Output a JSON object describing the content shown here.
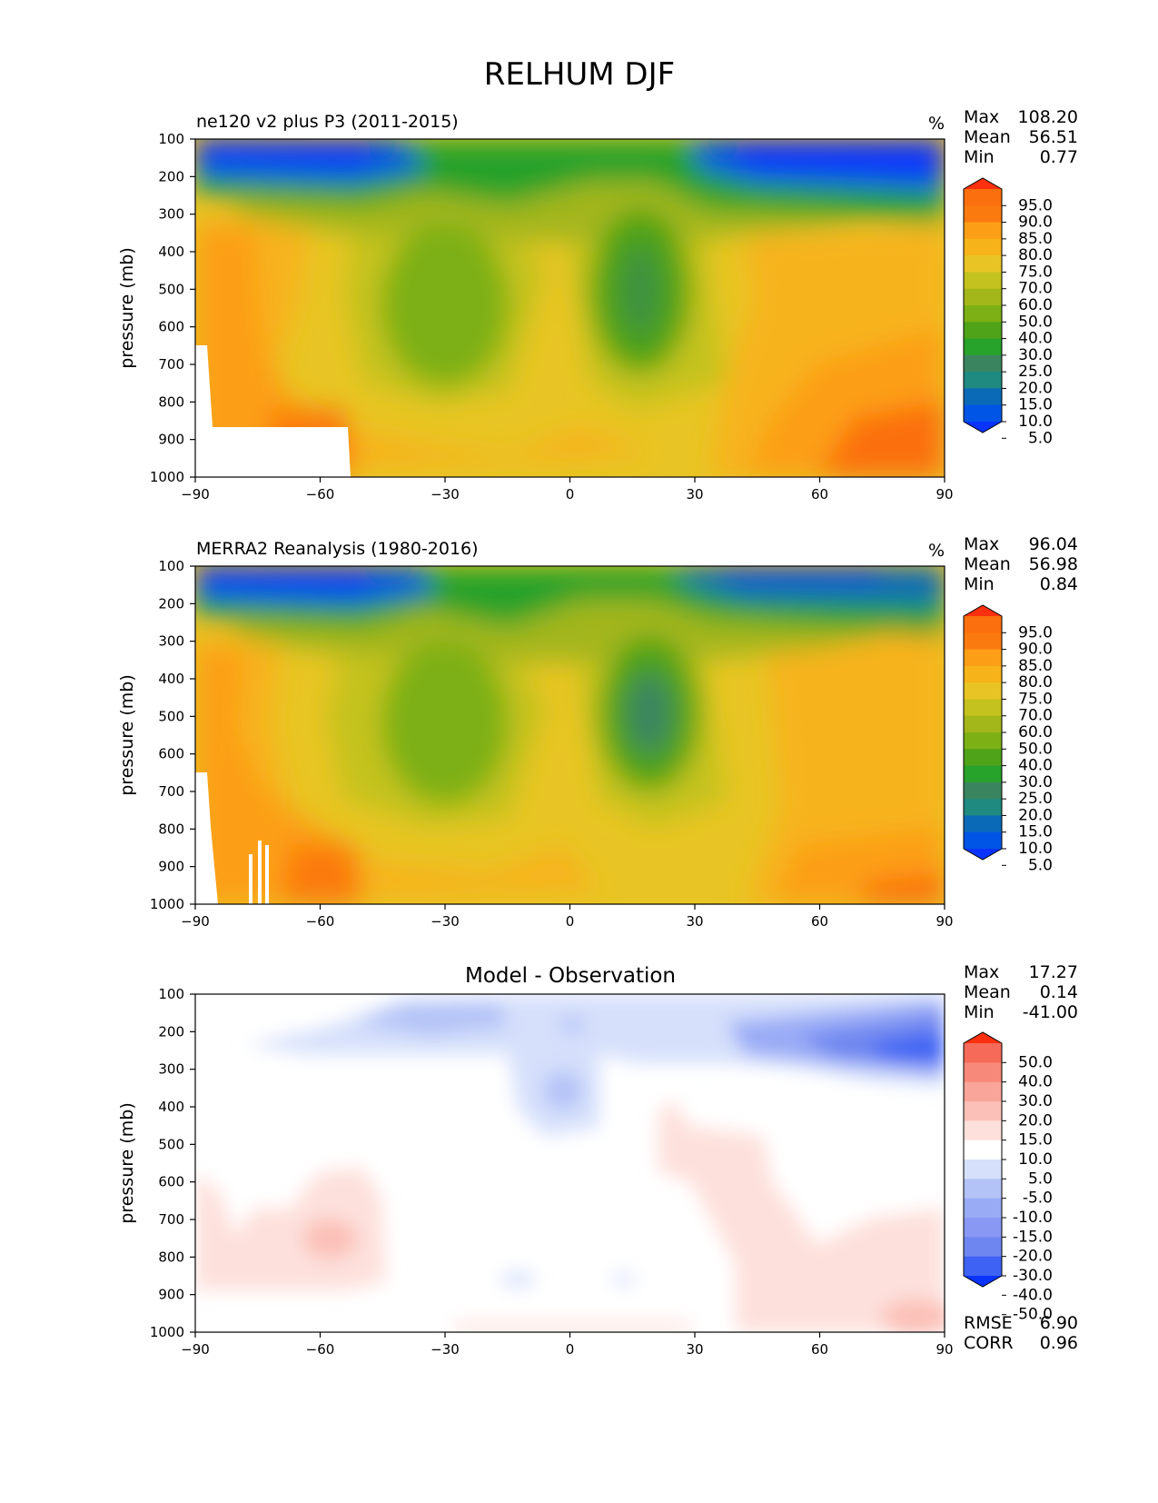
{
  "suptitle": "RELHUM DJF",
  "colors": {
    "relhum_levels": [
      "#0a33ff",
      "#0055e6",
      "#0a6ab8",
      "#1f8a80",
      "#3a8560",
      "#27a22a",
      "#4fa318",
      "#7db015",
      "#a3b61a",
      "#c4c21e",
      "#e8c524",
      "#f7b31a",
      "#fc9f17",
      "#fb7a10",
      "#fb6f0e",
      "#ff3010"
    ],
    "diff_levels": [
      "#0a33ff",
      "#3e63f4",
      "#6e86f0",
      "#8898f3",
      "#9aabf6",
      "#b4c3f7",
      "#d6e0fb",
      "#ffffff",
      "#fde0db",
      "#fbc0b7",
      "#f9a599",
      "#f7897a",
      "#f56a58",
      "#ff3010"
    ]
  },
  "chart_data": [
    {
      "type": "heatmap",
      "title": "ne120 v2 plus P3 (2011-2015)",
      "units": "%",
      "ylabel": "pressure (mb)",
      "x_ticks": [
        -90,
        -60,
        -30,
        0,
        30,
        60,
        90
      ],
      "y_ticks": [
        100,
        200,
        300,
        400,
        500,
        600,
        700,
        800,
        900,
        1000
      ],
      "xlim": [
        -90,
        90
      ],
      "ylim": [
        1000,
        100
      ],
      "stats": {
        "Max": 108.2,
        "Mean": 56.51,
        "Min": 0.77
      },
      "colorbar_levels": [
        95.0,
        90.0,
        85.0,
        80.0,
        75.0,
        70.0,
        60.0,
        50.0,
        40.0,
        30.0,
        25.0,
        20.0,
        15.0,
        10.0,
        5.0
      ]
    },
    {
      "type": "heatmap",
      "title": "MERRA2 Reanalysis (1980-2016)",
      "units": "%",
      "ylabel": "pressure (mb)",
      "x_ticks": [
        -90,
        -60,
        -30,
        0,
        30,
        60,
        90
      ],
      "y_ticks": [
        100,
        200,
        300,
        400,
        500,
        600,
        700,
        800,
        900,
        1000
      ],
      "xlim": [
        -90,
        90
      ],
      "ylim": [
        1000,
        100
      ],
      "stats": {
        "Max": 96.04,
        "Mean": 56.98,
        "Min": 0.84
      },
      "colorbar_levels": [
        95.0,
        90.0,
        85.0,
        80.0,
        75.0,
        70.0,
        60.0,
        50.0,
        40.0,
        30.0,
        25.0,
        20.0,
        15.0,
        10.0,
        5.0
      ]
    },
    {
      "type": "heatmap",
      "title": "Model - Observation",
      "ylabel": "pressure (mb)",
      "x_ticks": [
        -90,
        -60,
        -30,
        0,
        30,
        60,
        90
      ],
      "y_ticks": [
        100,
        200,
        300,
        400,
        500,
        600,
        700,
        800,
        900,
        1000
      ],
      "xlim": [
        -90,
        90
      ],
      "ylim": [
        1000,
        100
      ],
      "stats": {
        "Max": 17.27,
        "Mean": 0.14,
        "Min": -41.0
      },
      "skill": {
        "RMSE": 6.9,
        "CORR": 0.96
      },
      "colorbar_levels": [
        50.0,
        40.0,
        30.0,
        20.0,
        15.0,
        10.0,
        5.0,
        -5.0,
        -10.0,
        -15.0,
        -20.0,
        -30.0,
        -40.0,
        -50.0
      ]
    }
  ],
  "panels": [
    {
      "title": "ne120 v2 plus P3 (2011-2015)",
      "units": "%",
      "ylabel": "pressure (mb)",
      "x_tick_labels": [
        "−90",
        "−60",
        "−30",
        "0",
        "30",
        "60",
        "90"
      ],
      "y_tick_labels": [
        "100",
        "200",
        "300",
        "400",
        "500",
        "600",
        "700",
        "800",
        "900",
        "1000"
      ],
      "stats": [
        {
          "label": "Max",
          "value": "108.20"
        },
        {
          "label": "Mean",
          "value": "56.51"
        },
        {
          "label": "Min",
          "value": "0.77"
        }
      ],
      "colorbar_labels": [
        "95.0",
        "90.0",
        "85.0",
        "80.0",
        "75.0",
        "70.0",
        "60.0",
        "50.0",
        "40.0",
        "30.0",
        "25.0",
        "20.0",
        "15.0",
        "10.0",
        "5.0"
      ]
    },
    {
      "title": "MERRA2 Reanalysis (1980-2016)",
      "units": "%",
      "ylabel": "pressure (mb)",
      "x_tick_labels": [
        "−90",
        "−60",
        "−30",
        "0",
        "30",
        "60",
        "90"
      ],
      "y_tick_labels": [
        "100",
        "200",
        "300",
        "400",
        "500",
        "600",
        "700",
        "800",
        "900",
        "1000"
      ],
      "stats": [
        {
          "label": "Max",
          "value": "96.04"
        },
        {
          "label": "Mean",
          "value": "56.98"
        },
        {
          "label": "Min",
          "value": "0.84"
        }
      ],
      "colorbar_labels": [
        "95.0",
        "90.0",
        "85.0",
        "80.0",
        "75.0",
        "70.0",
        "60.0",
        "50.0",
        "40.0",
        "30.0",
        "25.0",
        "20.0",
        "15.0",
        "10.0",
        "5.0"
      ]
    },
    {
      "title": "Model - Observation",
      "ylabel": "pressure (mb)",
      "x_tick_labels": [
        "−90",
        "−60",
        "−30",
        "0",
        "30",
        "60",
        "90"
      ],
      "y_tick_labels": [
        "100",
        "200",
        "300",
        "400",
        "500",
        "600",
        "700",
        "800",
        "900",
        "1000"
      ],
      "stats": [
        {
          "label": "Max",
          "value": "17.27"
        },
        {
          "label": "Mean",
          "value": "0.14"
        },
        {
          "label": "Min",
          "value": "-41.00"
        }
      ],
      "skill": [
        {
          "label": "RMSE",
          "value": "6.90"
        },
        {
          "label": "CORR",
          "value": "0.96"
        }
      ],
      "colorbar_labels": [
        "50.0",
        "40.0",
        "30.0",
        "20.0",
        "15.0",
        "10.0",
        "5.0",
        "-5.0",
        "-10.0",
        "-15.0",
        "-20.0",
        "-30.0",
        "-40.0",
        "-50.0"
      ]
    }
  ]
}
